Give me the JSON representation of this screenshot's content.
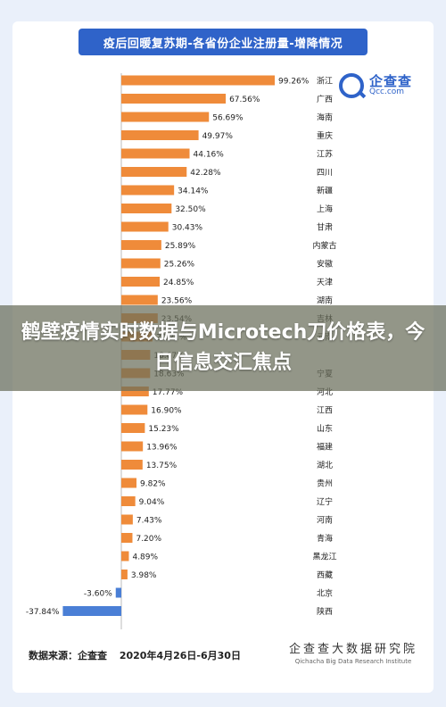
{
  "header": {
    "title": "疫后回暖复苏期-各省份企业注册量-增降情况"
  },
  "logo": {
    "cn": "企查查",
    "en": "Qcc.com"
  },
  "banner": {
    "text": "鹤壁疫情实时数据与Microtech刀价格表，今日信息交汇焦点"
  },
  "footer": {
    "source_label": "数据来源：企查查",
    "date_range": "2020年4月26日-6月30日",
    "brand_cn": "企查查大数据研究院",
    "brand_en": "Qichacha Big Data Research Institute"
  },
  "colors": {
    "positive": "#ef8b3a",
    "negative": "#4a7fd6",
    "axis": "#bbbbbb"
  },
  "chart_data": {
    "type": "bar",
    "orientation": "horizontal",
    "value_unit": "%",
    "categories": [
      "浙江",
      "广西",
      "海南",
      "重庆",
      "江苏",
      "四川",
      "新疆",
      "上海",
      "甘肃",
      "内蒙古",
      "安徽",
      "天津",
      "湖南",
      "吉林",
      "云南",
      "",
      "宁夏",
      "河北",
      "江西",
      "山东",
      "福建",
      "湖北",
      "贵州",
      "辽宁",
      "河南",
      "青海",
      "黑龙江",
      "西藏",
      "北京",
      "陕西"
    ],
    "values": [
      99.26,
      67.56,
      56.69,
      49.97,
      44.16,
      42.28,
      34.14,
      32.5,
      30.43,
      25.89,
      25.26,
      24.85,
      23.56,
      23.54,
      20.21,
      18.67,
      18.63,
      17.77,
      16.9,
      15.23,
      13.96,
      13.75,
      9.82,
      9.04,
      7.43,
      7.2,
      4.89,
      3.98,
      -3.6,
      -37.84
    ],
    "labels": [
      "99.26%",
      "67.56%",
      "56.69%",
      "49.97%",
      "44.16%",
      "42.28%",
      "34.14%",
      "32.50%",
      "30.43%",
      "25.89%",
      "25.26%",
      "24.85%",
      "23.56%",
      "23.54%",
      "20.21%",
      "18.67%",
      "18.63%",
      "17.77%",
      "16.90%",
      "15.23%",
      "13.96%",
      "13.75%",
      "9.82%",
      "9.04%",
      "7.43%",
      "7.20%",
      "4.89%",
      "3.98%",
      "-3.60%",
      "-37.84%"
    ]
  }
}
